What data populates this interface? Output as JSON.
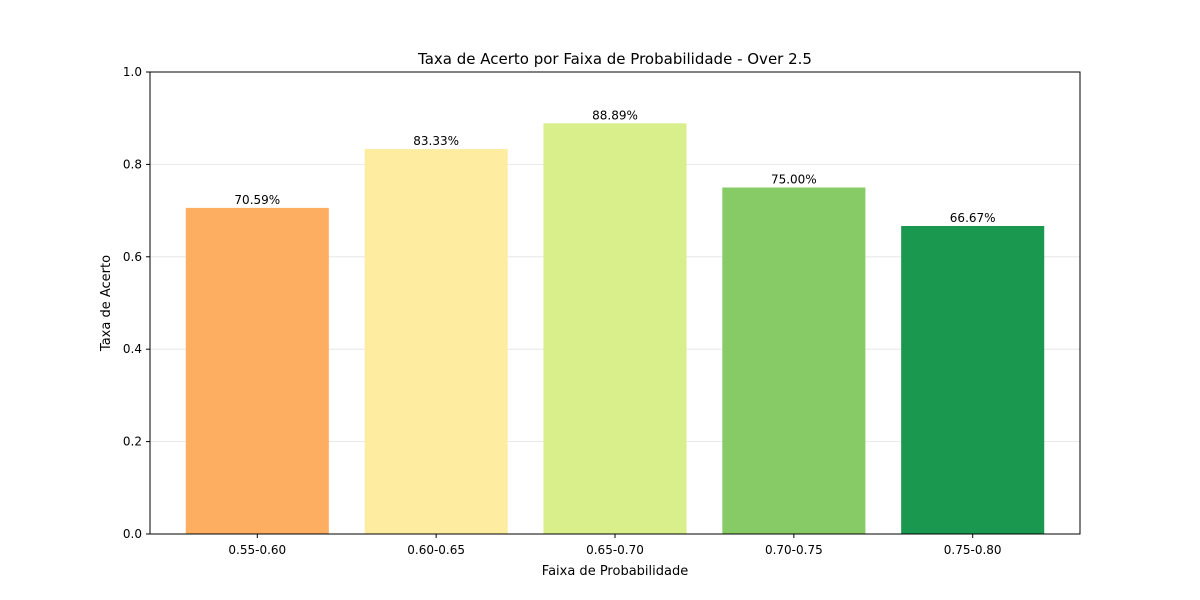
{
  "chart_data": {
    "type": "bar",
    "title": "Taxa de Acerto por Faixa de Probabilidade - Over 2.5",
    "xlabel": "Faixa de Probabilidade",
    "ylabel": "Taxa de Acerto",
    "categories": [
      "0.55-0.60",
      "0.60-0.65",
      "0.65-0.70",
      "0.70-0.75",
      "0.75-0.80"
    ],
    "values": [
      0.7059,
      0.8333,
      0.8889,
      0.75,
      0.6667
    ],
    "data_labels": [
      "70.59%",
      "83.33%",
      "88.89%",
      "75.00%",
      "66.67%"
    ],
    "bar_colors": [
      "#fdae61",
      "#feeda1",
      "#d9ef8b",
      "#86cb66",
      "#1a9850"
    ],
    "ylim": [
      0,
      1.0
    ],
    "yticks": [
      0.0,
      0.2,
      0.4,
      0.6,
      0.8,
      1.0
    ],
    "ytick_labels": [
      "0.0",
      "0.2",
      "0.4",
      "0.6",
      "0.8",
      "1.0"
    ],
    "grid": "horizontal",
    "legend": "none"
  }
}
